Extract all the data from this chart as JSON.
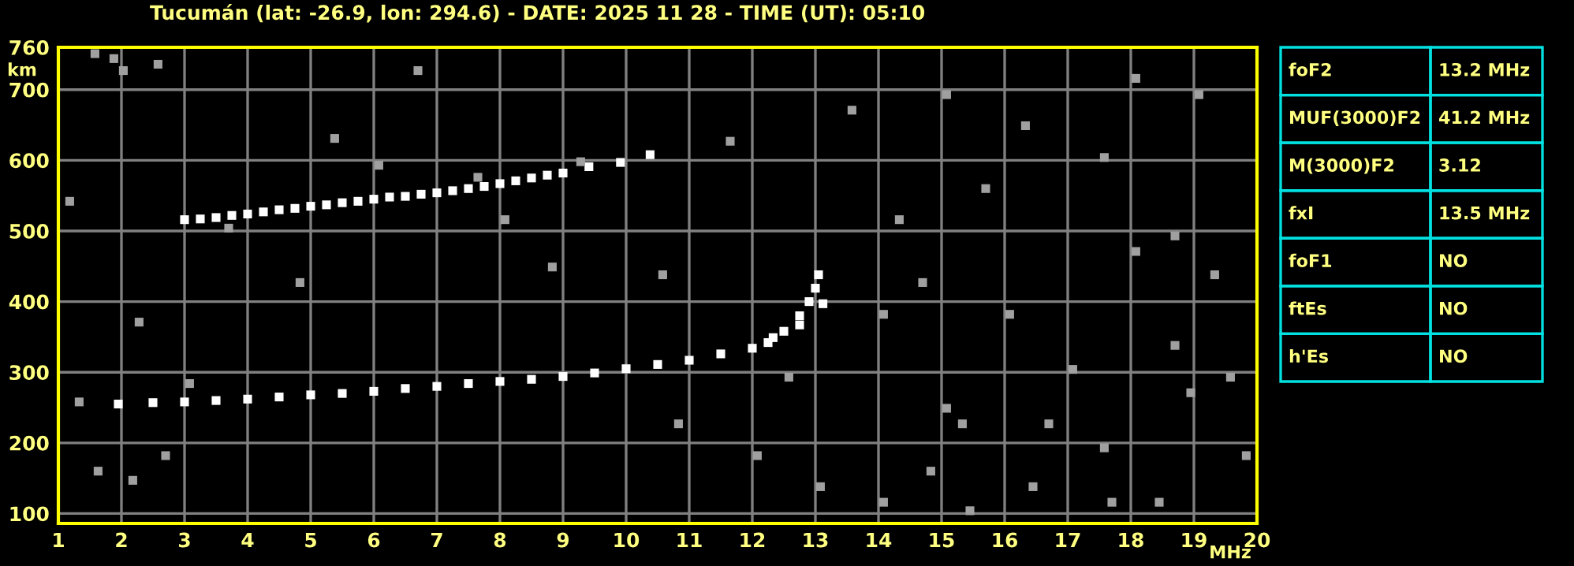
{
  "chart_data": [
    {
      "type": "scatter",
      "title": "Tucumán (lat: -26.9, lon: 294.6) - DATE: 2025 11 28 - TIME (UT): 05:10",
      "xlabel": "MHz",
      "ylabel": "km",
      "xlim": [
        1,
        20
      ],
      "ylim": [
        86,
        760
      ],
      "xticks": [
        1,
        2,
        3,
        4,
        5,
        6,
        7,
        8,
        9,
        10,
        11,
        12,
        13,
        14,
        15,
        16,
        17,
        18,
        19,
        20
      ],
      "yticks": [
        100,
        200,
        300,
        400,
        500,
        600,
        700,
        760
      ],
      "grid": true,
      "legend": false,
      "marker": "square",
      "series": [
        {
          "color": "#ffffff",
          "x": [
            1.95,
            2.5,
            3.0,
            3.5,
            4.0,
            4.5,
            5.0,
            5.5,
            6.0,
            6.5,
            7.0,
            7.5,
            8.0,
            8.5,
            9.0,
            9.5,
            10.0,
            10.5,
            11.0,
            11.5,
            12.0,
            12.25,
            12.5,
            12.75,
            12.9,
            13.0,
            13.05
          ],
          "values": [
            255,
            257,
            258,
            260,
            262,
            265,
            268,
            270,
            273,
            277,
            280,
            284,
            287,
            290,
            294,
            299,
            305,
            311,
            317,
            326,
            334,
            342,
            358,
            380,
            400,
            419,
            438
          ]
        },
        {
          "color": "#ffffff",
          "x": [
            12.33,
            12.75,
            13.12
          ],
          "values": [
            349,
            367,
            397
          ]
        },
        {
          "color": "#ffffff",
          "x": [
            3.0,
            3.25,
            3.5,
            3.75,
            4.0,
            4.25,
            4.5,
            4.75,
            5.0,
            5.25,
            5.5,
            5.75,
            6.0,
            6.25,
            6.5,
            6.75,
            7.0,
            7.25,
            7.5,
            7.75,
            8.0,
            8.25,
            8.5,
            8.75,
            9.0,
            9.41,
            9.91,
            10.38
          ],
          "values": [
            516,
            517,
            519,
            522,
            524,
            527,
            530,
            532,
            535,
            537,
            540,
            542,
            545,
            548,
            549,
            552,
            554,
            557,
            560,
            563,
            567,
            571,
            575,
            579,
            582,
            591,
            597,
            608
          ]
        },
        {
          "color": "#a0a0a0",
          "x": [
            1.18,
            1.58,
            1.88,
            2.03,
            2.58,
            2.28,
            1.33,
            1.63,
            2.18,
            2.7,
            3.08,
            3.7,
            4.83,
            5.38,
            6.08,
            6.7,
            7.65,
            8.08,
            8.83,
            9.28,
            10.58,
            11.65,
            14.33,
            14.83,
            15.08,
            15.33,
            16.08,
            16.45,
            17.08,
            17.58,
            18.08,
            18.7,
            19.33,
            19.58,
            19.83,
            14.08,
            13.08,
            15.45,
            18.45,
            19.08,
            18.08,
            16.33,
            13.58,
            15.08,
            12.08,
            10.83,
            12.58,
            14.08,
            15.7,
            17.58,
            18.7,
            16.7,
            18.95,
            17.7,
            14.7
          ],
          "values": [
            542,
            751,
            744,
            727,
            736,
            371,
            258,
            160,
            147,
            182,
            284,
            504,
            427,
            631,
            593,
            727,
            576,
            516,
            449,
            598,
            438,
            627,
            516,
            160,
            249,
            227,
            382,
            138,
            304,
            193,
            471,
            493,
            438,
            293,
            182,
            116,
            138,
            104,
            116,
            693,
            716,
            649,
            671,
            693,
            182,
            227,
            293,
            382,
            560,
            604,
            338,
            227,
            271,
            116,
            427
          ]
        }
      ]
    },
    {
      "type": "other",
      "annotations": [
        "foF2",
        "13.2 MHz",
        "MUF(3000)F2",
        "41.2 MHz",
        "M(3000)F2",
        "3.12",
        "fxI",
        "13.5 MHz",
        "foF1",
        "NO",
        "ftEs",
        "NO",
        "h'Es",
        "NO"
      ]
    }
  ]
}
